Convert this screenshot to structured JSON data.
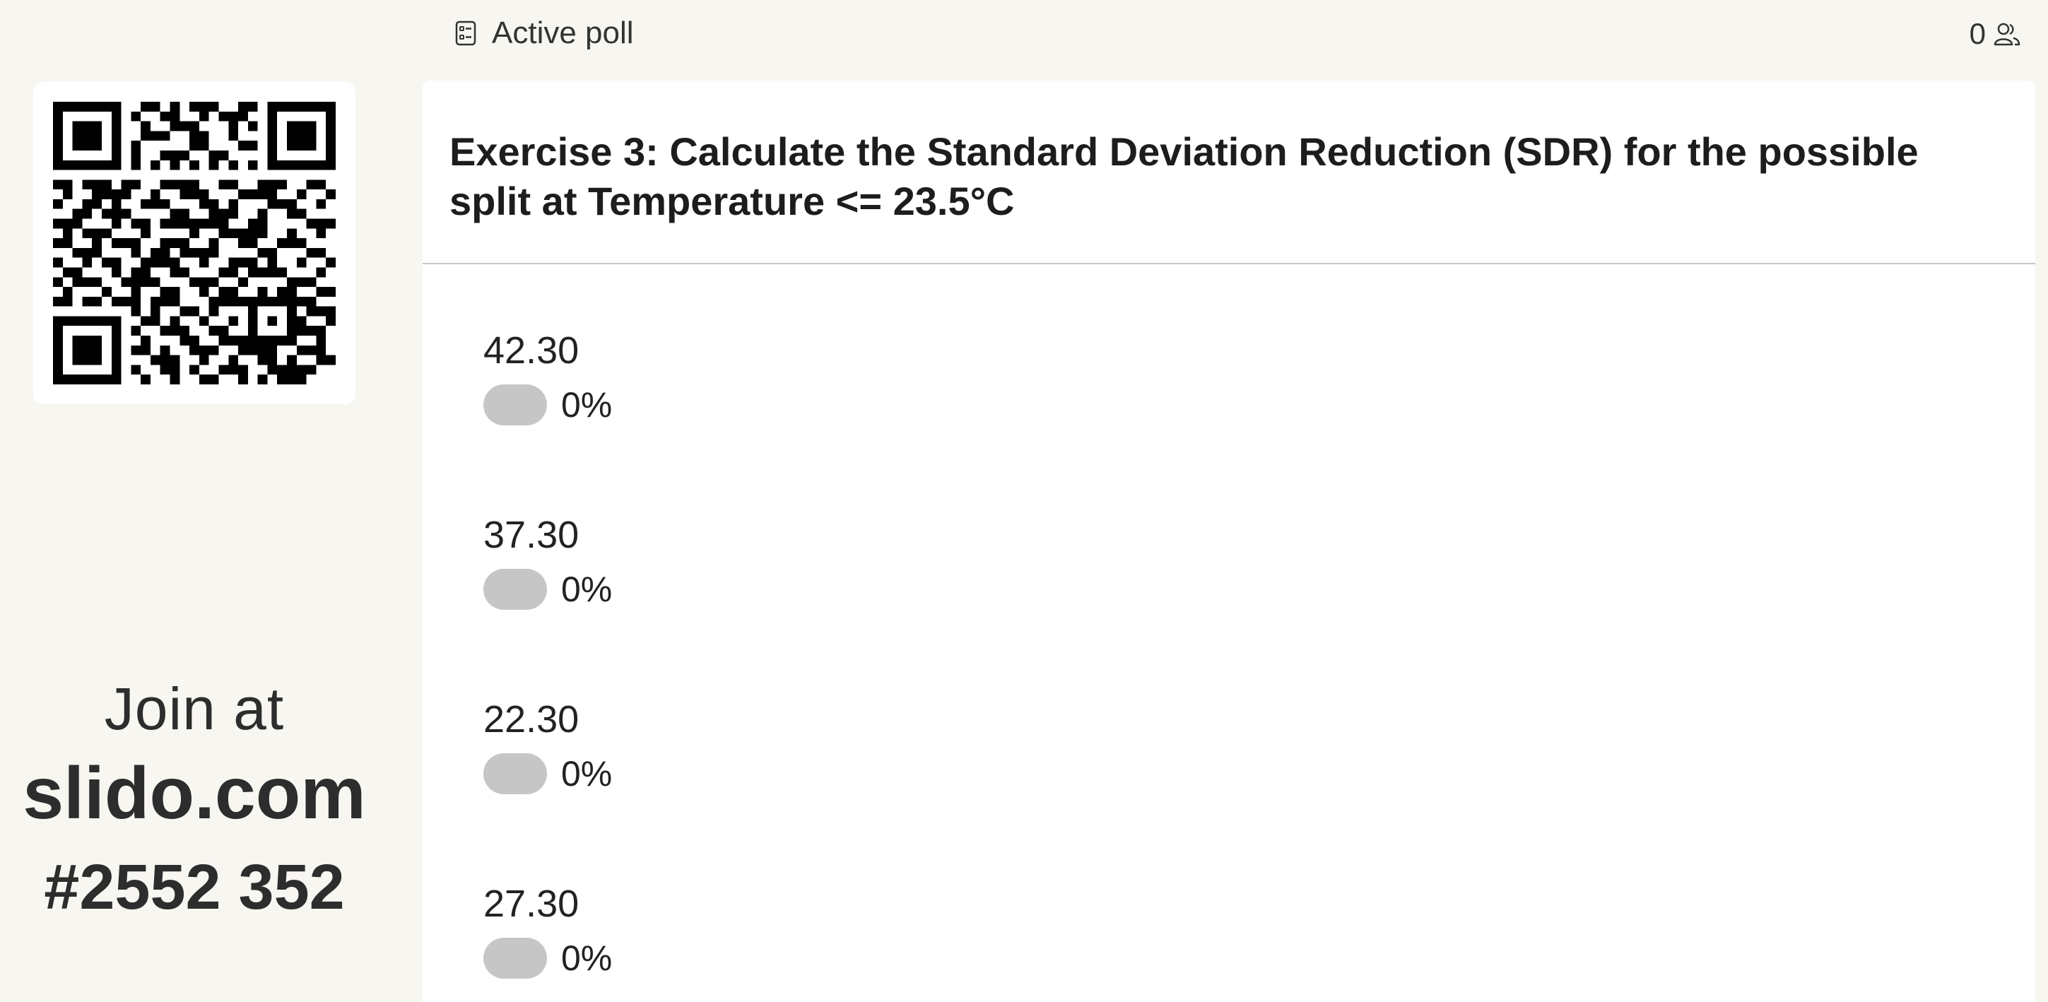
{
  "topbar": {
    "poll_status": "Active poll",
    "participant_count": "0",
    "poll_icon": "poll-list-icon",
    "participants_icon": "people-icon"
  },
  "sidebar": {
    "qr_icon": "qr-code-icon",
    "join_text": "Join at",
    "join_site": "slido.com",
    "join_code": "#2552 352"
  },
  "question": {
    "title": "Exercise 3: Calculate the Standard Deviation Reduction (SDR) for the possible split at Temperature <= 23.5°C"
  },
  "options": [
    {
      "label": "42.30",
      "percent": "0%"
    },
    {
      "label": "37.30",
      "percent": "0%"
    },
    {
      "label": "22.30",
      "percent": "0%"
    },
    {
      "label": "27.30",
      "percent": "0%"
    }
  ],
  "colors": {
    "background": "#f7f6f1",
    "card": "#ffffff",
    "bar_empty": "#c6c6c6"
  }
}
